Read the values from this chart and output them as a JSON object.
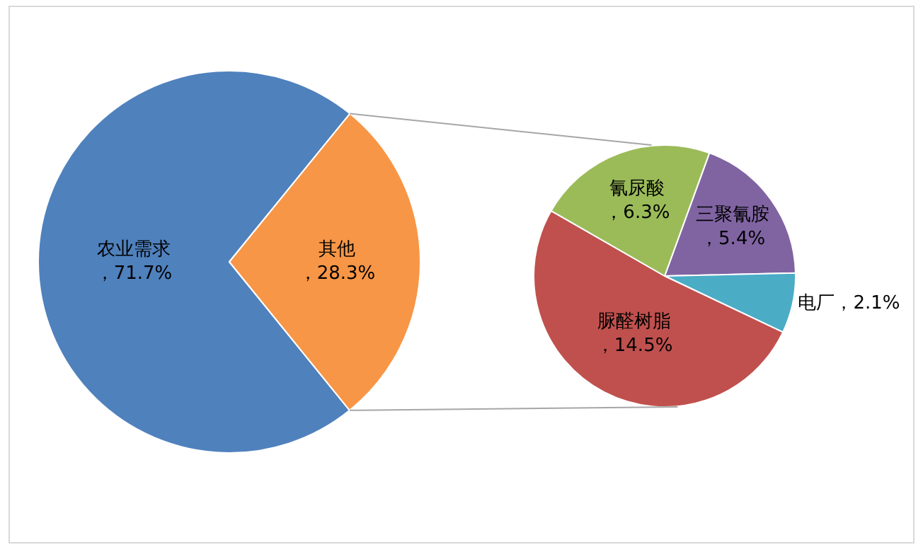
{
  "chart_data": [
    {
      "type": "pie",
      "categories": [
        "农业需求",
        "其他"
      ],
      "values": [
        71.7,
        28.3
      ],
      "colors": [
        "#4f81bd",
        "#f79646"
      ],
      "value_labels": [
        "，71.7%",
        "，28.3%"
      ]
    },
    {
      "type": "pie",
      "categories": [
        "三聚氰胺",
        "电厂",
        "脲醛树脂",
        "氰尿酸"
      ],
      "values": [
        5.4,
        2.1,
        14.5,
        6.3
      ],
      "colors": [
        "#8064a2",
        "#4bacc6",
        "#c0504d",
        "#9bbb59"
      ],
      "value_labels": [
        "，5.4%",
        "，2.1%",
        "，14.5%",
        "，6.3%"
      ]
    }
  ]
}
